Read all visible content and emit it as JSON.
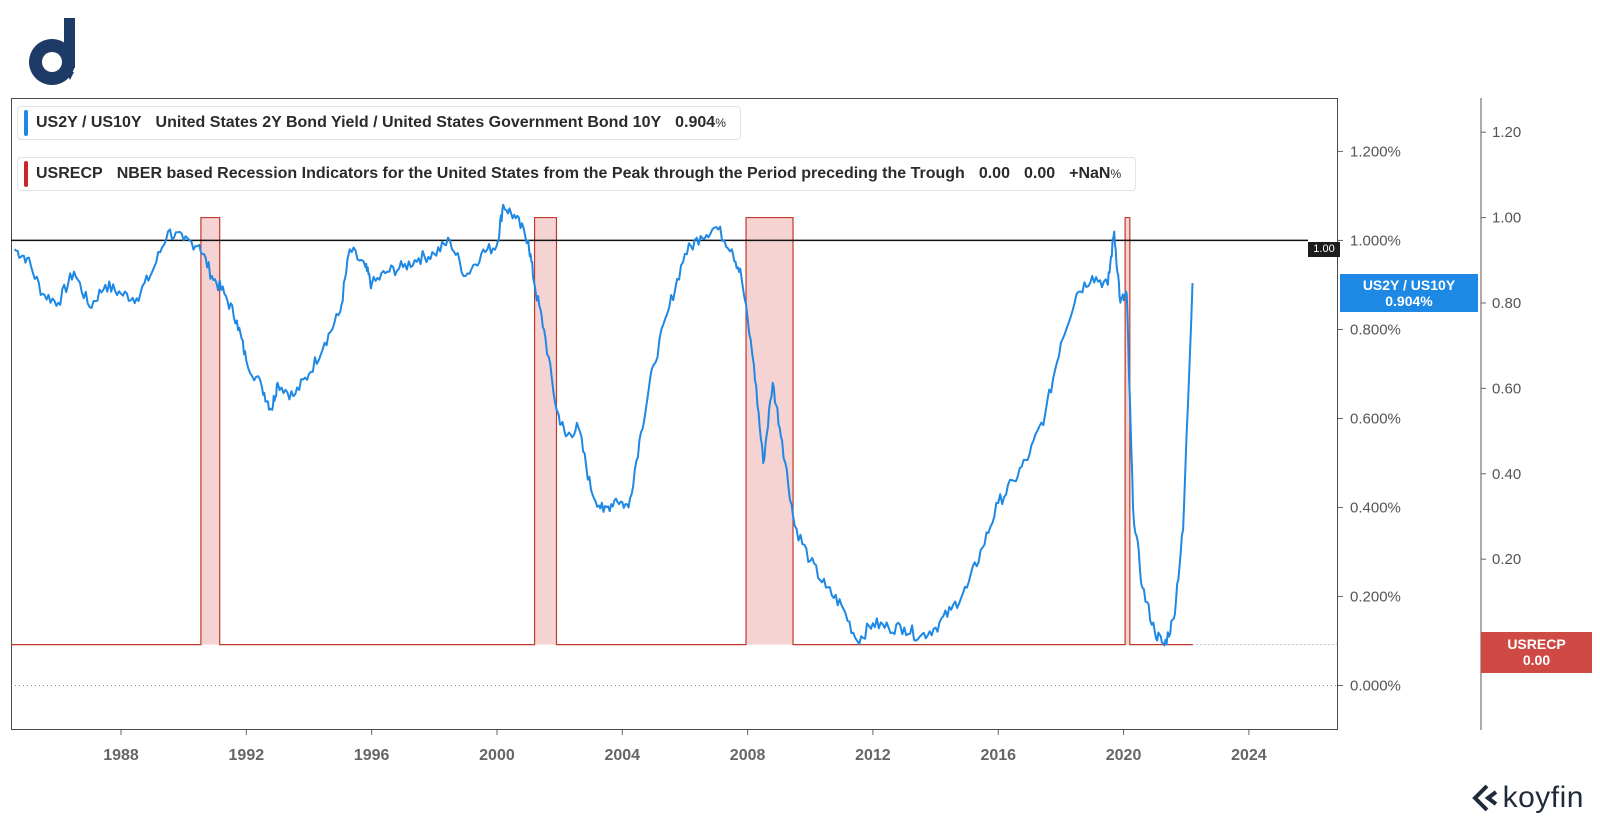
{
  "legend": {
    "series1": {
      "ticker": "US2Y / US10Y",
      "name": "United States 2Y Bond Yield / United States Government Bond 10Y",
      "value": "0.904",
      "unit": "%",
      "color": "#1e88e5"
    },
    "series2": {
      "ticker": "USRECP",
      "name": "NBER based Recession Indicators for the United States from the Peak through the Period preceding the Trough",
      "value1": "0.00",
      "value2": "0.00",
      "change": "+NaN",
      "unit": "%",
      "color": "#c62828"
    }
  },
  "tags": {
    "spread": {
      "line1": "US2Y / US10Y",
      "line2": "0.904%"
    },
    "recession": {
      "line1": "USRECP",
      "line2": "0.00"
    },
    "reference": "1.00"
  },
  "brand": {
    "name": "koyfin"
  },
  "chart_data": {
    "type": "line",
    "x_ticks": [
      "1988",
      "1992",
      "1996",
      "2000",
      "2004",
      "2008",
      "2012",
      "2016",
      "2020",
      "2024"
    ],
    "left_axis": {
      "ticks": [
        "0.000%",
        "0.200%",
        "0.400%",
        "0.600%",
        "0.800%",
        "1.000%",
        "1.200%"
      ],
      "ylim": [
        -0.1,
        1.32
      ]
    },
    "right_axis": {
      "ticks": [
        "0.20",
        "0.40",
        "0.60",
        "0.80",
        "1.00",
        "1.20"
      ],
      "ylim": [
        -0.2,
        1.28
      ]
    },
    "reference_line": {
      "value": 1.0
    },
    "series": [
      {
        "name": "US2Y / US10Y",
        "axis": "left",
        "points": [
          [
            1984.6,
            0.98
          ],
          [
            1985.0,
            0.96
          ],
          [
            1985.5,
            0.88
          ],
          [
            1986.0,
            0.86
          ],
          [
            1986.5,
            0.93
          ],
          [
            1987.0,
            0.85
          ],
          [
            1987.5,
            0.9
          ],
          [
            1988.0,
            0.88
          ],
          [
            1988.5,
            0.87
          ],
          [
            1989.0,
            0.93
          ],
          [
            1989.5,
            1.02
          ],
          [
            1990.0,
            1.0
          ],
          [
            1990.5,
            0.99
          ],
          [
            1990.9,
            0.92
          ],
          [
            1991.3,
            0.88
          ],
          [
            1991.7,
            0.82
          ],
          [
            1992.0,
            0.73
          ],
          [
            1992.5,
            0.67
          ],
          [
            1992.8,
            0.62
          ],
          [
            1993.0,
            0.68
          ],
          [
            1993.5,
            0.65
          ],
          [
            1994.0,
            0.7
          ],
          [
            1994.5,
            0.77
          ],
          [
            1995.0,
            0.84
          ],
          [
            1995.3,
            0.98
          ],
          [
            1995.8,
            0.94
          ],
          [
            1996.0,
            0.9
          ],
          [
            1996.5,
            0.93
          ],
          [
            1997.0,
            0.94
          ],
          [
            1997.5,
            0.96
          ],
          [
            1998.0,
            0.97
          ],
          [
            1998.5,
            1.0
          ],
          [
            1999.0,
            0.92
          ],
          [
            1999.5,
            0.97
          ],
          [
            2000.0,
            0.99
          ],
          [
            2000.2,
            1.08
          ],
          [
            2000.6,
            1.05
          ],
          [
            2001.0,
            1.0
          ],
          [
            2001.2,
            0.9
          ],
          [
            2001.5,
            0.8
          ],
          [
            2001.9,
            0.62
          ],
          [
            2002.2,
            0.56
          ],
          [
            2002.6,
            0.58
          ],
          [
            2003.0,
            0.44
          ],
          [
            2003.4,
            0.39
          ],
          [
            2003.8,
            0.42
          ],
          [
            2004.2,
            0.4
          ],
          [
            2004.6,
            0.57
          ],
          [
            2005.0,
            0.72
          ],
          [
            2005.5,
            0.85
          ],
          [
            2006.0,
            0.97
          ],
          [
            2006.5,
            1.01
          ],
          [
            2007.0,
            1.03
          ],
          [
            2007.5,
            0.98
          ],
          [
            2007.8,
            0.92
          ],
          [
            2008.2,
            0.72
          ],
          [
            2008.5,
            0.5
          ],
          [
            2008.8,
            0.68
          ],
          [
            2009.1,
            0.55
          ],
          [
            2009.5,
            0.36
          ],
          [
            2010.0,
            0.28
          ],
          [
            2010.5,
            0.22
          ],
          [
            2011.0,
            0.18
          ],
          [
            2011.5,
            0.1
          ],
          [
            2012.0,
            0.14
          ],
          [
            2012.5,
            0.13
          ],
          [
            2013.0,
            0.13
          ],
          [
            2013.5,
            0.11
          ],
          [
            2014.0,
            0.13
          ],
          [
            2014.5,
            0.17
          ],
          [
            2015.0,
            0.22
          ],
          [
            2015.5,
            0.31
          ],
          [
            2016.0,
            0.41
          ],
          [
            2016.5,
            0.46
          ],
          [
            2017.0,
            0.52
          ],
          [
            2017.5,
            0.61
          ],
          [
            2018.0,
            0.77
          ],
          [
            2018.5,
            0.88
          ],
          [
            2019.0,
            0.92
          ],
          [
            2019.5,
            0.9
          ],
          [
            2019.7,
            1.02
          ],
          [
            2019.9,
            0.86
          ],
          [
            2020.1,
            0.88
          ],
          [
            2020.3,
            0.4
          ],
          [
            2020.6,
            0.22
          ],
          [
            2021.0,
            0.12
          ],
          [
            2021.3,
            0.09
          ],
          [
            2021.6,
            0.15
          ],
          [
            2021.9,
            0.35
          ],
          [
            2022.2,
            0.904
          ]
        ]
      },
      {
        "name": "USRECP",
        "axis": "right",
        "recession_periods": [
          [
            1990.55,
            1991.15
          ],
          [
            2001.2,
            2001.9
          ],
          [
            2007.95,
            2009.45
          ],
          [
            2020.05,
            2020.2
          ]
        ],
        "values": {
          "base": 0.0,
          "active": 1.0
        }
      }
    ],
    "grid": false
  }
}
